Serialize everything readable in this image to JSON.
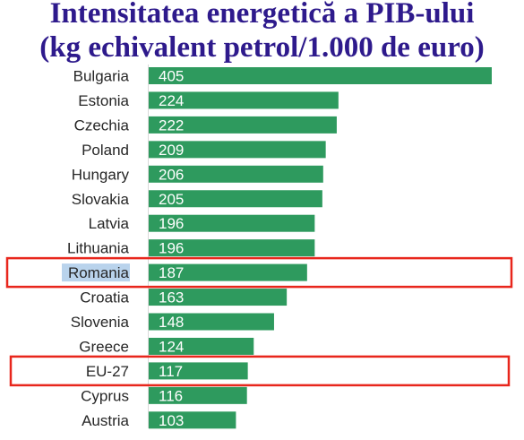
{
  "chart_data": {
    "type": "bar",
    "orientation": "horizontal",
    "title": "Intensitatea energetică a PIB-ului",
    "subtitle": "(kg echivalent petrol/1.000 de euro)",
    "categories": [
      "Bulgaria",
      "Estonia",
      "Czechia",
      "Poland",
      "Hungary",
      "Slovakia",
      "Latvia",
      "Lithuania",
      "Romania",
      "Croatia",
      "Slovenia",
      "Greece",
      "EU-27",
      "Cyprus",
      "Austria"
    ],
    "values": [
      405,
      224,
      222,
      209,
      206,
      205,
      196,
      196,
      187,
      163,
      148,
      124,
      117,
      116,
      103
    ],
    "xlim": [
      0,
      405
    ],
    "grid": false,
    "highlighted": [
      "Romania",
      "EU-27"
    ],
    "selected_label": "Romania"
  },
  "colors": {
    "title": "#2e1a8c",
    "bar": "#2e9a5e",
    "highlight_box": "#e8261c",
    "selection": "#b9d3ec",
    "axis": "#d9d9d9"
  }
}
